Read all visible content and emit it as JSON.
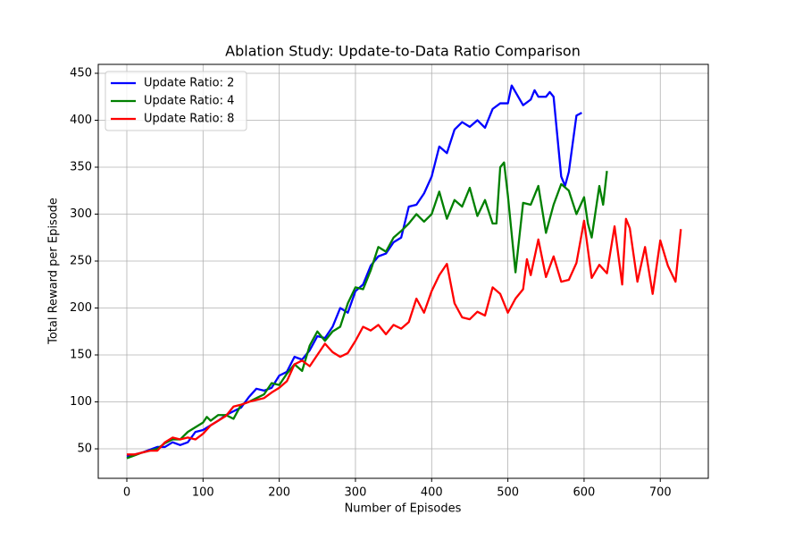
{
  "chart_data": {
    "type": "line",
    "title": "Ablation Study: Update-to-Data Ratio Comparison",
    "xlabel": "Number of Episodes",
    "ylabel": "Total Reward per Episode",
    "xlim": [
      -37.5,
      763
    ],
    "ylim": [
      18.6,
      459.5
    ],
    "xticks": [
      0,
      100,
      200,
      300,
      400,
      500,
      600,
      700
    ],
    "yticks": [
      50,
      100,
      150,
      200,
      250,
      300,
      350,
      400,
      450
    ],
    "grid": true,
    "legend": "upper left",
    "series": [
      {
        "name": "Update Ratio: 2",
        "color": "#0000ff",
        "x": [
          0,
          10,
          20,
          30,
          40,
          50,
          60,
          70,
          80,
          90,
          100,
          110,
          120,
          130,
          140,
          150,
          160,
          170,
          180,
          190,
          200,
          210,
          220,
          230,
          240,
          250,
          260,
          270,
          280,
          290,
          300,
          310,
          320,
          330,
          340,
          350,
          360,
          370,
          380,
          390,
          400,
          410,
          420,
          430,
          440,
          450,
          460,
          470,
          480,
          490,
          500,
          505,
          510,
          520,
          530,
          535,
          540,
          550,
          555,
          560,
          570,
          575,
          580,
          590,
          597
        ],
        "values": [
          42,
          44,
          46,
          49,
          52,
          52,
          57,
          54,
          57,
          68,
          70,
          75,
          80,
          86,
          90,
          94,
          105,
          114,
          112,
          115,
          128,
          132,
          148,
          145,
          155,
          170,
          168,
          180,
          200,
          195,
          218,
          225,
          245,
          255,
          258,
          270,
          275,
          308,
          310,
          322,
          340,
          372,
          365,
          390,
          398,
          393,
          400,
          392,
          412,
          418,
          418,
          437,
          430,
          416,
          422,
          432,
          425,
          425,
          430,
          425,
          340,
          330,
          345,
          405,
          408
        ]
      },
      {
        "name": "Update Ratio: 4",
        "color": "#008000",
        "x": [
          0,
          10,
          20,
          30,
          40,
          50,
          60,
          70,
          80,
          90,
          100,
          105,
          110,
          120,
          130,
          140,
          150,
          160,
          170,
          180,
          190,
          200,
          210,
          220,
          230,
          240,
          250,
          260,
          270,
          280,
          290,
          300,
          310,
          320,
          330,
          340,
          350,
          360,
          370,
          380,
          390,
          400,
          410,
          420,
          430,
          440,
          450,
          460,
          470,
          480,
          485,
          490,
          495,
          500,
          510,
          520,
          530,
          540,
          550,
          560,
          570,
          580,
          590,
          600,
          605,
          610,
          620,
          625,
          630
        ],
        "values": [
          40,
          43,
          46,
          48,
          50,
          56,
          60,
          60,
          68,
          73,
          78,
          84,
          80,
          86,
          86,
          82,
          97,
          100,
          104,
          108,
          120,
          118,
          130,
          140,
          133,
          160,
          175,
          165,
          175,
          180,
          205,
          222,
          220,
          240,
          265,
          260,
          275,
          282,
          290,
          300,
          292,
          300,
          324,
          295,
          315,
          308,
          328,
          298,
          315,
          290,
          290,
          350,
          355,
          320,
          238,
          312,
          310,
          330,
          280,
          310,
          332,
          325,
          300,
          318,
          290,
          275,
          330,
          310,
          346
        ]
      },
      {
        "name": "Update Ratio: 8",
        "color": "#ff0000",
        "x": [
          0,
          10,
          20,
          30,
          40,
          50,
          60,
          70,
          80,
          90,
          100,
          110,
          120,
          130,
          140,
          150,
          160,
          170,
          180,
          190,
          200,
          210,
          220,
          230,
          240,
          250,
          260,
          270,
          280,
          290,
          300,
          310,
          320,
          330,
          340,
          350,
          360,
          370,
          380,
          390,
          400,
          410,
          420,
          430,
          440,
          450,
          460,
          470,
          480,
          490,
          500,
          510,
          520,
          525,
          530,
          540,
          550,
          560,
          570,
          580,
          590,
          600,
          610,
          620,
          630,
          640,
          650,
          655,
          660,
          670,
          680,
          690,
          700,
          710,
          720,
          727
        ],
        "values": [
          44,
          44,
          46,
          48,
          48,
          57,
          62,
          60,
          62,
          60,
          66,
          75,
          80,
          85,
          95,
          97,
          100,
          102,
          104,
          110,
          115,
          122,
          140,
          144,
          138,
          150,
          162,
          153,
          148,
          152,
          165,
          180,
          176,
          182,
          172,
          182,
          178,
          185,
          210,
          195,
          218,
          235,
          247,
          205,
          190,
          188,
          196,
          192,
          222,
          215,
          195,
          210,
          220,
          252,
          235,
          273,
          233,
          255,
          228,
          230,
          248,
          293,
          232,
          246,
          237,
          287,
          225,
          295,
          285,
          228,
          265,
          215,
          272,
          245,
          228,
          284
        ]
      }
    ]
  }
}
